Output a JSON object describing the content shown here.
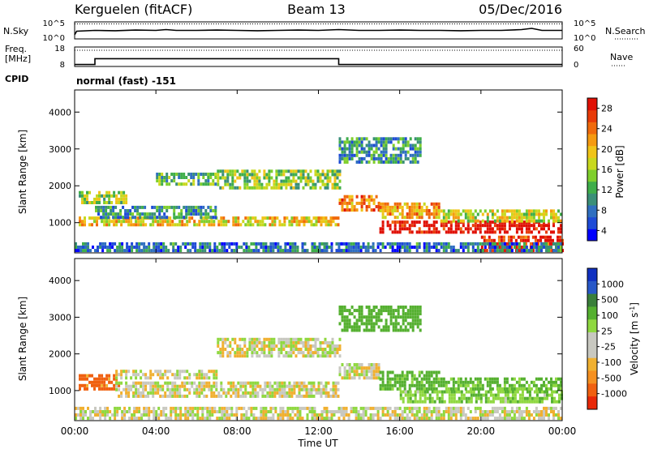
{
  "header": {
    "title_left": "Kerguelen (fitACF)",
    "title_center": "Beam 13",
    "title_right": "05/Dec/2016"
  },
  "chart_data": [
    {
      "type": "line",
      "panel": "nsky",
      "left_label": "N.Sky",
      "right_label": "N.Search",
      "left_ticks": [
        "10^5",
        "10^0"
      ],
      "right_ticks": [
        "10^5",
        "10^0"
      ],
      "x_hours": [
        0,
        0.1,
        1,
        2,
        3,
        4,
        4.5,
        5,
        6,
        7,
        8,
        9,
        10,
        11,
        12,
        13,
        14,
        15,
        16,
        17,
        18,
        19,
        20,
        21,
        22,
        22.5,
        23,
        23.5,
        24
      ],
      "nsky_level": [
        0.25,
        0.45,
        0.5,
        0.48,
        0.52,
        0.5,
        0.55,
        0.5,
        0.5,
        0.52,
        0.5,
        0.48,
        0.5,
        0.52,
        0.5,
        0.55,
        0.5,
        0.5,
        0.52,
        0.5,
        0.5,
        0.48,
        0.5,
        0.5,
        0.55,
        0.62,
        0.5,
        0.5,
        0.5
      ],
      "nsearch_level": 0.88
    },
    {
      "type": "line",
      "panel": "freq",
      "left_label": "Freq.",
      "left_unit": "[MHz]",
      "right_label": "Nave",
      "left_ticks": [
        18,
        8
      ],
      "right_ticks": [
        60,
        0
      ],
      "freq_steps": [
        {
          "x0": 0,
          "x1": 1,
          "mhz": 9
        },
        {
          "x0": 1,
          "x1": 13,
          "mhz": 12
        },
        {
          "x0": 13,
          "x1": 24,
          "mhz": 9
        }
      ],
      "nave_level": 50
    },
    {
      "type": "heatmap",
      "panel": "power",
      "cpid_label": "CPID",
      "cpid_text": "normal (fast) -151",
      "ylabel": "Slant Range [km]",
      "ylim": [
        180,
        4600
      ],
      "yticks": [
        1000,
        2000,
        3000,
        4000
      ],
      "colorbar_label": "Power [dB]",
      "colorbar_ticks": [
        4,
        8,
        12,
        16,
        20,
        24,
        28
      ],
      "colorbar_colors": [
        "#0000ff",
        "#1e4bd6",
        "#2f6fc0",
        "#3a8f78",
        "#3fae4a",
        "#7fcf2c",
        "#c8d81e",
        "#f0c418",
        "#f59a10",
        "#f06a0c",
        "#e83a08",
        "#e01005"
      ],
      "bands": [
        {
          "t0": 0.2,
          "t1": 13,
          "r0": 900,
          "r1": 1150,
          "db": 18
        },
        {
          "t0": 0.2,
          "t1": 2.5,
          "r0": 1500,
          "r1": 1800,
          "db": 14
        },
        {
          "t0": 1,
          "t1": 7,
          "r0": 1100,
          "r1": 1450,
          "db": 10
        },
        {
          "t0": 4,
          "t1": 7,
          "r0": 2000,
          "r1": 2300,
          "db": 12
        },
        {
          "t0": 7,
          "t1": 13,
          "r0": 1900,
          "r1": 2400,
          "db": 14
        },
        {
          "t0": 13,
          "t1": 15,
          "r0": 1300,
          "r1": 1700,
          "db": 22
        },
        {
          "t0": 15,
          "t1": 18,
          "r0": 1100,
          "r1": 1500,
          "db": 20
        },
        {
          "t0": 15,
          "t1": 24,
          "r0": 700,
          "r1": 1000,
          "db": 28
        },
        {
          "t0": 18,
          "t1": 24,
          "r0": 1000,
          "r1": 1300,
          "db": 16
        },
        {
          "t0": 13,
          "t1": 17,
          "r0": 2600,
          "r1": 3300,
          "db": 10
        },
        {
          "t0": 20,
          "t1": 24,
          "r0": 200,
          "r1": 600,
          "db": 26
        },
        {
          "t0": 0,
          "t1": 24,
          "r0": 200,
          "r1": 400,
          "db": 8
        }
      ]
    },
    {
      "type": "heatmap",
      "panel": "velocity",
      "ylabel": "Slant Range [km]",
      "ylim": [
        180,
        4600
      ],
      "yticks": [
        1000,
        2000,
        3000,
        4000
      ],
      "xlabel": "Time UT",
      "xticks": [
        "00:00",
        "04:00",
        "08:00",
        "12:00",
        "16:00",
        "20:00",
        "00:00"
      ],
      "colorbar_label": "Velocity [m s",
      "colorbar_ticks": [
        "1000",
        "500",
        "100",
        "25",
        "-25",
        "-100",
        "-500",
        "-1000"
      ],
      "colorbar_colors": [
        "#1030c0",
        "#2858c8",
        "#3a7f3a",
        "#55b030",
        "#8fd840",
        "#c8c8c0",
        "#c8c8c0",
        "#f0b030",
        "#f59020",
        "#f06010",
        "#e82808"
      ],
      "bands": [
        {
          "t0": 0.2,
          "t1": 2.2,
          "r0": 1000,
          "r1": 1400,
          "v": -150
        },
        {
          "t0": 2,
          "t1": 13,
          "r0": 800,
          "r1": 1200,
          "v": 0
        },
        {
          "t0": 2,
          "t1": 7,
          "r0": 1300,
          "r1": 1500,
          "v": 0
        },
        {
          "t0": 7,
          "t1": 13,
          "r0": 1900,
          "r1": 2400,
          "v": 0
        },
        {
          "t0": 13,
          "t1": 15,
          "r0": 1300,
          "r1": 1700,
          "v": 0
        },
        {
          "t0": 15,
          "t1": 18,
          "r0": 1000,
          "r1": 1500,
          "v": 150
        },
        {
          "t0": 16,
          "t1": 24,
          "r0": 650,
          "r1": 1000,
          "v": 80
        },
        {
          "t0": 18,
          "t1": 24,
          "r0": 1000,
          "r1": 1350,
          "v": 120
        },
        {
          "t0": 13,
          "t1": 17,
          "r0": 2600,
          "r1": 3300,
          "v": 200
        },
        {
          "t0": 0,
          "t1": 24,
          "r0": 200,
          "r1": 500,
          "v": 0
        }
      ]
    }
  ]
}
